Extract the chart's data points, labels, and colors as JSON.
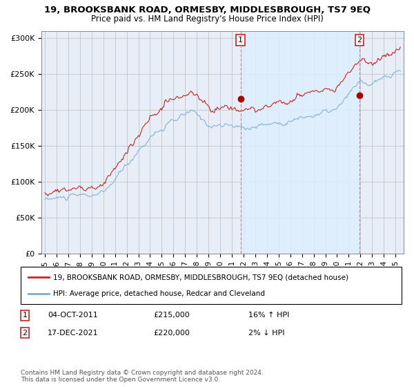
{
  "title": "19, BROOKSBANK ROAD, ORMESBY, MIDDLESBROUGH, TS7 9EQ",
  "subtitle": "Price paid vs. HM Land Registry's House Price Index (HPI)",
  "legend_line1": "19, BROOKSBANK ROAD, ORMESBY, MIDDLESBROUGH, TS7 9EQ (detached house)",
  "legend_line2": "HPI: Average price, detached house, Redcar and Cleveland",
  "sale1_date": "04-OCT-2011",
  "sale1_price": "£215,000",
  "sale1_hpi": "16% ↑ HPI",
  "sale2_date": "17-DEC-2021",
  "sale2_price": "£220,000",
  "sale2_hpi": "2% ↓ HPI",
  "footnote": "Contains HM Land Registry data © Crown copyright and database right 2024.\nThis data is licensed under the Open Government Licence v3.0.",
  "hpi_color": "#7aadd4",
  "property_color": "#cc2222",
  "sale_marker_color": "#aa0000",
  "vline_color": "#ff6666",
  "shade_color": "#ddeeff",
  "grid_color": "#bbbbbb",
  "background_color": "#e8eef8",
  "ylim": [
    0,
    310000
  ],
  "yticks": [
    0,
    50000,
    100000,
    150000,
    200000,
    250000,
    300000
  ],
  "xmin": 1994.7,
  "xmax": 2025.7,
  "sale1_x": 2011.75,
  "sale1_y": 215000,
  "sale2_x": 2021.917,
  "sale2_y": 220000
}
